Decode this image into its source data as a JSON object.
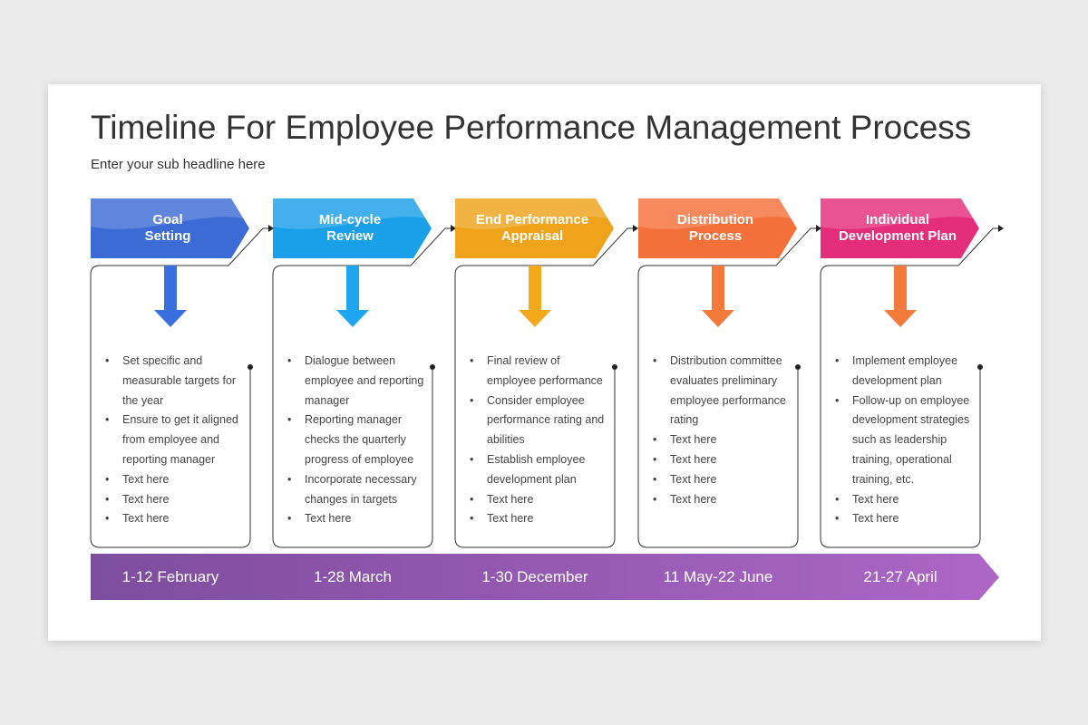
{
  "header": {
    "title": "Timeline For Employee Performance Management Process",
    "subtitle": "Enter your sub headline here"
  },
  "steps": [
    {
      "title_lines": [
        "Goal",
        "Setting"
      ],
      "bullets": [
        "Set specific and measurable targets for the year",
        "Ensure to get it aligned from employee and reporting manager",
        "Text here",
        "Text here",
        "Text here"
      ],
      "date": "1-12 February"
    },
    {
      "title_lines": [
        "Mid-cycle",
        "Review"
      ],
      "bullets": [
        "Dialogue between employee and reporting manager",
        "Reporting manager checks the quarterly progress of employee",
        "Incorporate necessary changes in targets",
        "Text here"
      ],
      "date": "1-28 March"
    },
    {
      "title_lines": [
        "End Performance",
        "Appraisal"
      ],
      "bullets": [
        "Final review of employee performance",
        "Consider employee performance rating and abilities",
        "Establish employee development plan",
        "Text here",
        "Text here"
      ],
      "date": "1-30 December"
    },
    {
      "title_lines": [
        "Distribution",
        "Process"
      ],
      "bullets": [
        "Distribution committee evaluates preliminary employee performance rating",
        "Text here",
        "Text here",
        "Text here",
        "Text here"
      ],
      "date": "11 May-22 June"
    },
    {
      "title_lines": [
        "Individual",
        "Development Plan"
      ],
      "bullets": [
        "Implement employee development plan",
        "Follow-up on employee development strategies such as leadership training, operational training, etc.",
        "Text here",
        "Text here"
      ],
      "date": "21-27 April"
    }
  ]
}
